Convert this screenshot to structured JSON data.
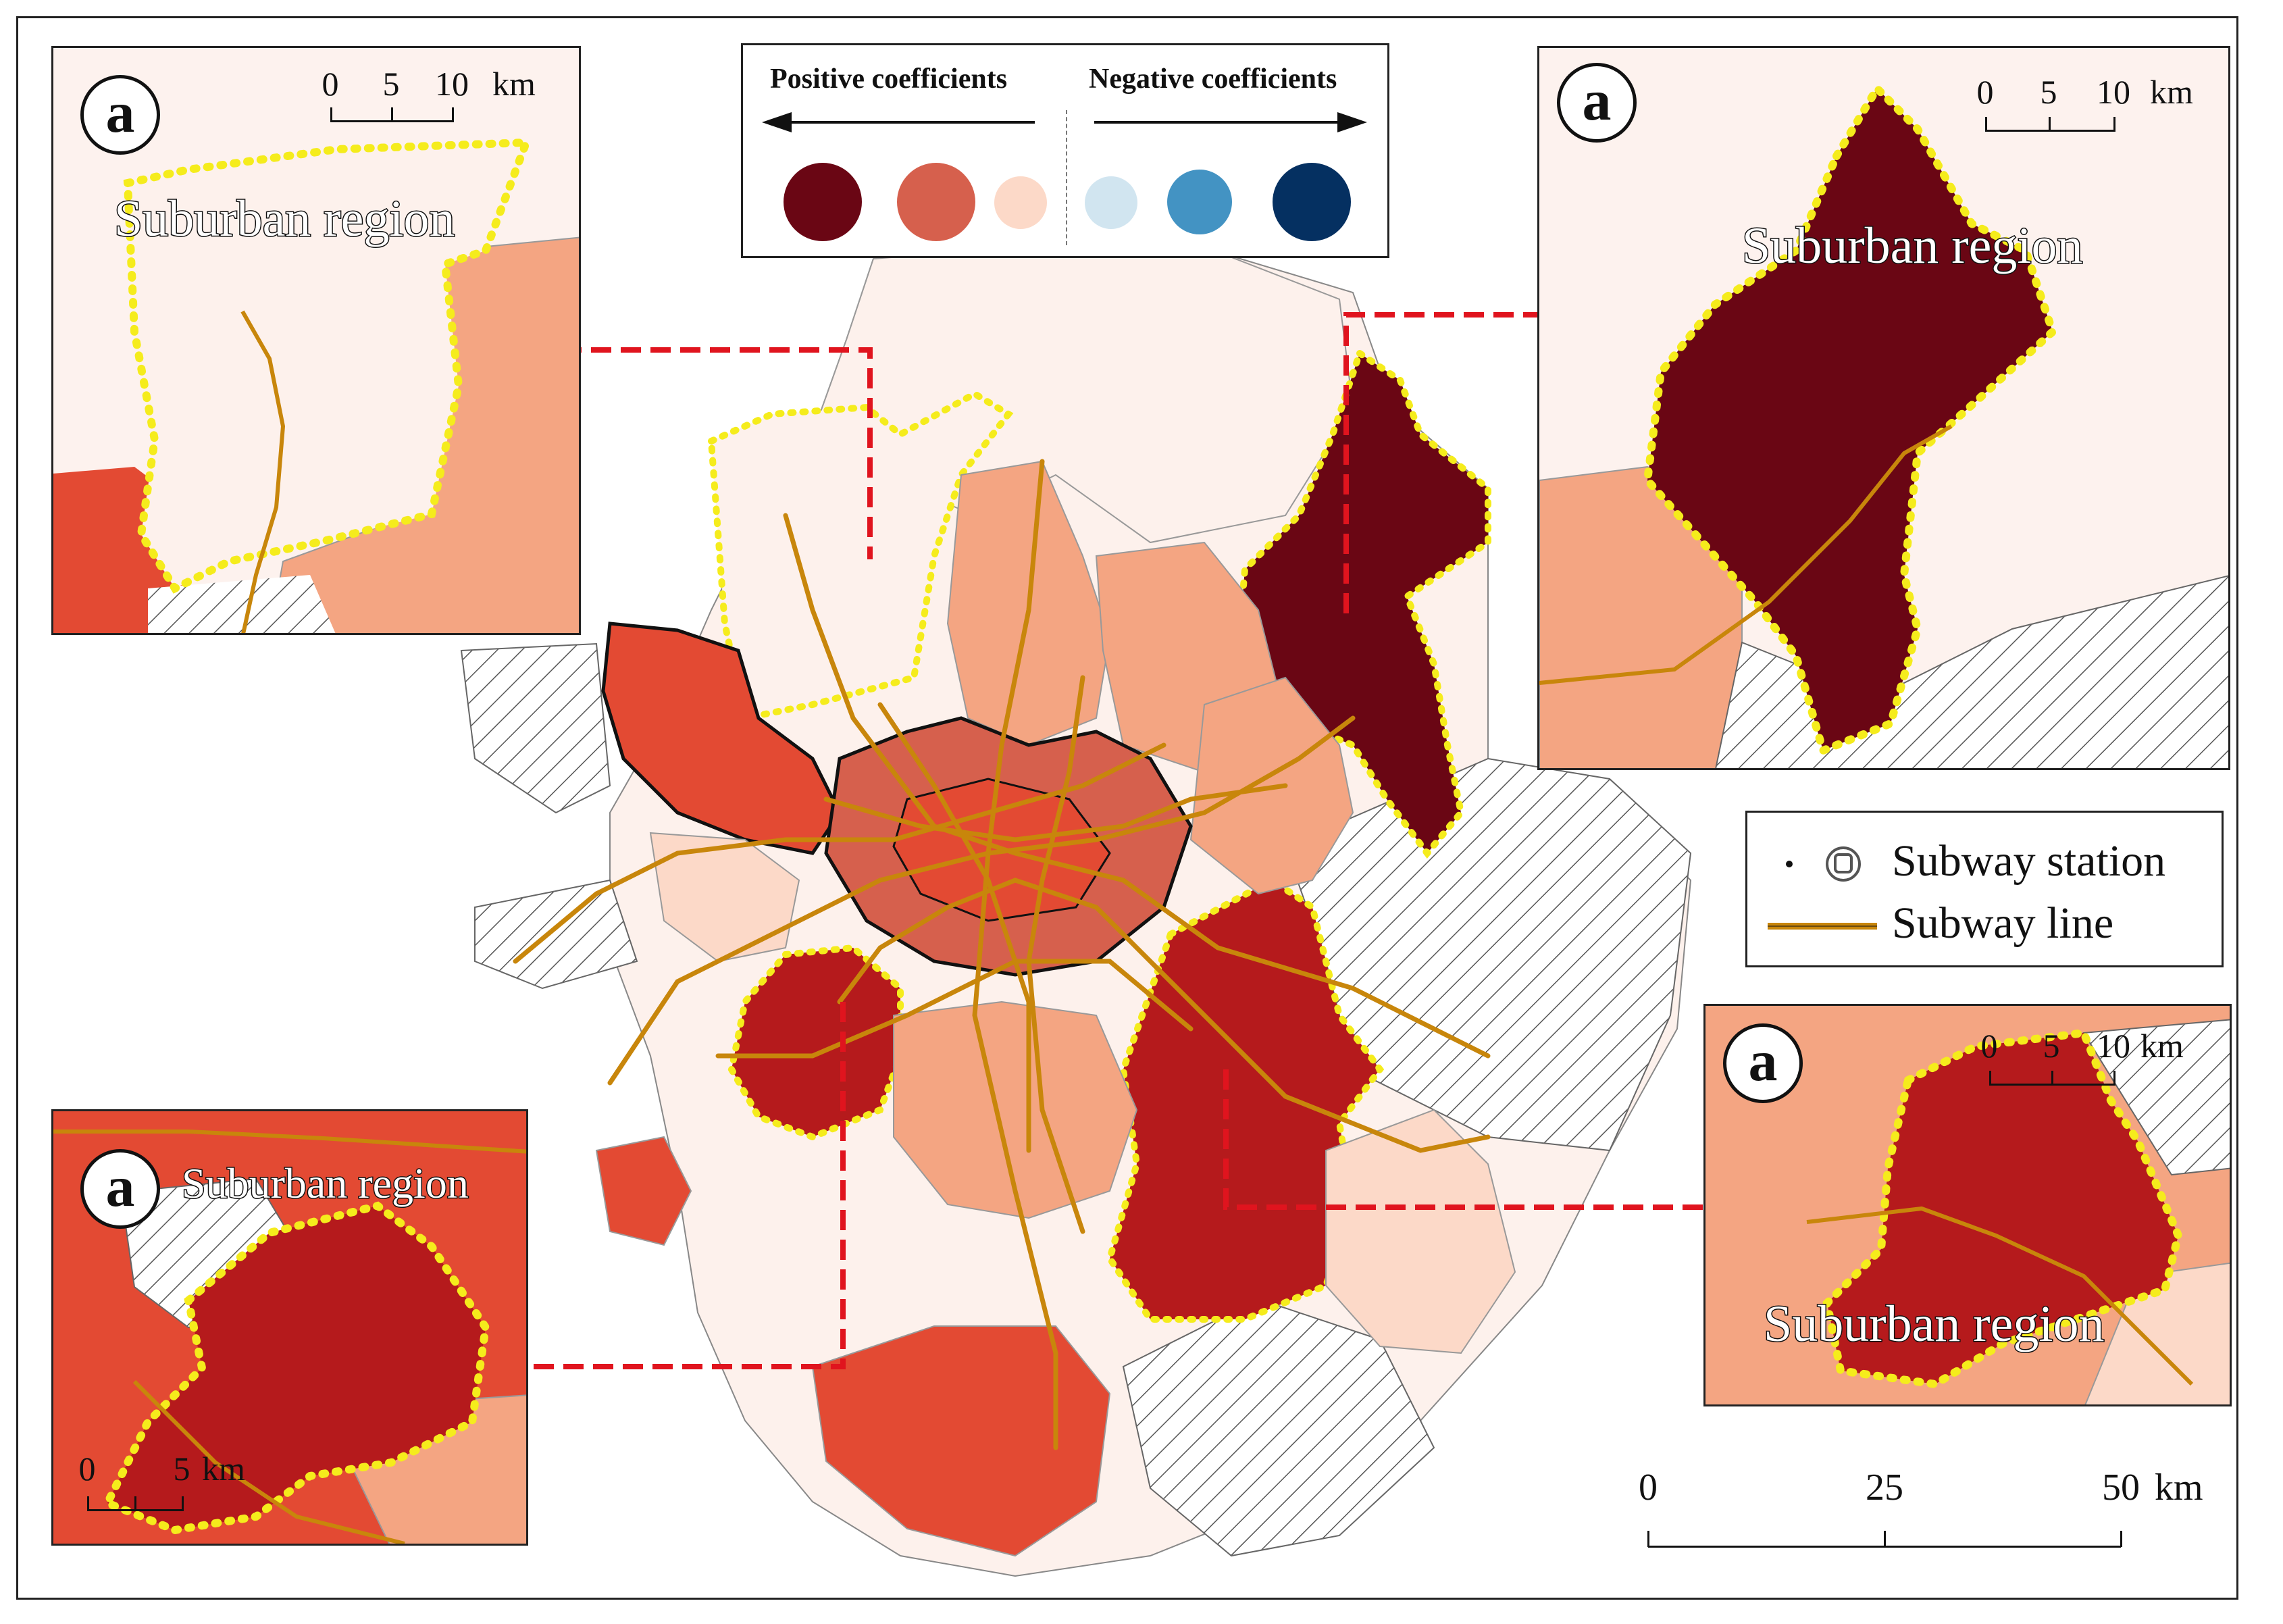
{
  "palette": {
    "pos_strong": "#6a0614",
    "pos_med_high": "#b51a1c",
    "pos_medium": "#d6604d",
    "pos_bright": "#e34a33",
    "pos_light": "#f4a582",
    "pos_pale": "#fcd9c8",
    "pos_faint": "#fdf1ec",
    "neg_light": "#d1e5f0",
    "neg_medium": "#4393c3",
    "neg_strong": "#053061",
    "suburb_outline": "#f5ec1c",
    "subway_line": "#c8860b",
    "callout": "#e0141e",
    "hatch": "#555555"
  },
  "legend": {
    "positive_label": "Positive coefficients",
    "negative_label": "Negative coefficients",
    "positive_classes": [
      "#6a0614",
      "#d6604d",
      "#fcd9c8"
    ],
    "negative_classes": [
      "#d1e5f0",
      "#4393c3",
      "#053061"
    ]
  },
  "symbols": {
    "station_label": "Subway station",
    "line_label": "Subway line",
    "station_icon": "subway-station-icon",
    "line_icon": "subway-line-icon"
  },
  "main_scale": {
    "ticks": [
      "0",
      "25",
      "50"
    ],
    "unit": "km"
  },
  "insets": [
    {
      "id": "top-left",
      "badge": "a",
      "title": "Suburban region",
      "scale_ticks": [
        "0",
        "5",
        "10"
      ],
      "scale_unit": "km"
    },
    {
      "id": "top-right",
      "badge": "a",
      "title": "Suburban region",
      "scale_ticks": [
        "0",
        "5",
        "10"
      ],
      "scale_unit": "km"
    },
    {
      "id": "bottom-left",
      "badge": "a",
      "title": "Suburban region",
      "scale_ticks": [
        "0",
        "5"
      ],
      "scale_unit": "km"
    },
    {
      "id": "bottom-right",
      "badge": "a",
      "title": "Suburban region",
      "scale_ticks": [
        "0",
        "5",
        "10"
      ],
      "scale_unit": "km"
    }
  ]
}
